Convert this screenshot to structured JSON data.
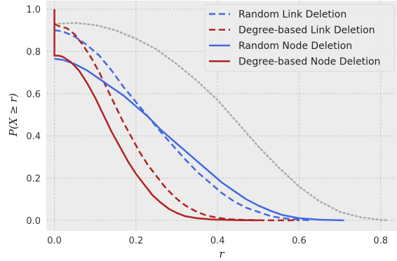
{
  "chart_data": {
    "type": "line",
    "title": "",
    "xlabel": "r",
    "ylabel": "P(X ≥ r)",
    "xlim": [
      -0.02,
      0.84
    ],
    "ylim": [
      -0.05,
      1.04
    ],
    "xticks": [
      0.0,
      0.2,
      0.4,
      0.6,
      0.8
    ],
    "xtick_labels": [
      "0.0",
      "0.2",
      "0.4",
      "0.6",
      "0.8"
    ],
    "yticks": [
      0.0,
      0.2,
      0.4,
      0.6,
      0.8,
      1.0
    ],
    "ytick_labels": [
      "0.0",
      "0.2",
      "0.4",
      "0.6",
      "0.8",
      "1.0"
    ],
    "grid": true,
    "legend_position": "top-right",
    "colors": {
      "blue": "#4169e1",
      "red": "#b22222",
      "gray": "#aaaaaa",
      "background": "#ececec",
      "grid": "#c8c8c8"
    },
    "series": [
      {
        "name": "Random Link Deletion",
        "color": "#4169e1",
        "dash": "dashed",
        "points": [
          [
            0.0,
            0.9
          ],
          [
            0.02,
            0.895
          ],
          [
            0.05,
            0.87
          ],
          [
            0.08,
            0.83
          ],
          [
            0.11,
            0.78
          ],
          [
            0.14,
            0.71
          ],
          [
            0.17,
            0.63
          ],
          [
            0.2,
            0.56
          ],
          [
            0.23,
            0.49
          ],
          [
            0.26,
            0.42
          ],
          [
            0.29,
            0.355
          ],
          [
            0.32,
            0.29
          ],
          [
            0.35,
            0.23
          ],
          [
            0.38,
            0.18
          ],
          [
            0.41,
            0.13
          ],
          [
            0.44,
            0.09
          ],
          [
            0.47,
            0.06
          ],
          [
            0.5,
            0.04
          ],
          [
            0.53,
            0.02
          ],
          [
            0.56,
            0.01
          ],
          [
            0.6,
            0.003
          ],
          [
            0.63,
            0.0
          ]
        ]
      },
      {
        "name": "Degree-based Link Deletion",
        "color": "#b22222",
        "dash": "dashed",
        "points": [
          [
            0.0,
            0.93
          ],
          [
            0.01,
            0.92
          ],
          [
            0.03,
            0.91
          ],
          [
            0.05,
            0.88
          ],
          [
            0.07,
            0.83
          ],
          [
            0.09,
            0.77
          ],
          [
            0.11,
            0.7
          ],
          [
            0.13,
            0.62
          ],
          [
            0.15,
            0.54
          ],
          [
            0.17,
            0.46
          ],
          [
            0.19,
            0.39
          ],
          [
            0.21,
            0.32
          ],
          [
            0.23,
            0.26
          ],
          [
            0.25,
            0.21
          ],
          [
            0.27,
            0.16
          ],
          [
            0.29,
            0.12
          ],
          [
            0.31,
            0.085
          ],
          [
            0.33,
            0.06
          ],
          [
            0.35,
            0.04
          ],
          [
            0.37,
            0.025
          ],
          [
            0.4,
            0.012
          ],
          [
            0.43,
            0.005
          ],
          [
            0.47,
            0.002
          ],
          [
            0.52,
            0.0
          ],
          [
            0.6,
            0.0
          ]
        ]
      },
      {
        "name": "Random Node Deletion",
        "color": "#4169e1",
        "dash": "solid",
        "points": [
          [
            0.0,
            0.765
          ],
          [
            0.02,
            0.76
          ],
          [
            0.05,
            0.74
          ],
          [
            0.08,
            0.71
          ],
          [
            0.11,
            0.67
          ],
          [
            0.14,
            0.63
          ],
          [
            0.17,
            0.59
          ],
          [
            0.2,
            0.54
          ],
          [
            0.23,
            0.49
          ],
          [
            0.26,
            0.43
          ],
          [
            0.29,
            0.38
          ],
          [
            0.32,
            0.33
          ],
          [
            0.35,
            0.28
          ],
          [
            0.38,
            0.23
          ],
          [
            0.41,
            0.18
          ],
          [
            0.44,
            0.14
          ],
          [
            0.47,
            0.1
          ],
          [
            0.5,
            0.07
          ],
          [
            0.53,
            0.045
          ],
          [
            0.56,
            0.025
          ],
          [
            0.6,
            0.01
          ],
          [
            0.65,
            0.003
          ],
          [
            0.71,
            0.0
          ]
        ]
      },
      {
        "name": "Degree-based Node Deletion",
        "color": "#b22222",
        "dash": "solid",
        "points": [
          [
            0.0,
            1.0
          ],
          [
            0.0,
            0.78
          ],
          [
            0.01,
            0.78
          ],
          [
            0.02,
            0.775
          ],
          [
            0.04,
            0.75
          ],
          [
            0.06,
            0.71
          ],
          [
            0.08,
            0.65
          ],
          [
            0.1,
            0.58
          ],
          [
            0.12,
            0.5
          ],
          [
            0.14,
            0.42
          ],
          [
            0.16,
            0.35
          ],
          [
            0.18,
            0.28
          ],
          [
            0.2,
            0.22
          ],
          [
            0.22,
            0.17
          ],
          [
            0.24,
            0.12
          ],
          [
            0.26,
            0.085
          ],
          [
            0.28,
            0.055
          ],
          [
            0.3,
            0.035
          ],
          [
            0.32,
            0.02
          ],
          [
            0.35,
            0.01
          ],
          [
            0.39,
            0.004
          ],
          [
            0.45,
            0.001
          ],
          [
            0.5,
            0.0
          ]
        ]
      },
      {
        "color": "#aaaaaa",
        "dash": "dotted",
        "points": [
          [
            0.0,
            0.93
          ],
          [
            0.05,
            0.935
          ],
          [
            0.1,
            0.925
          ],
          [
            0.15,
            0.9
          ],
          [
            0.2,
            0.86
          ],
          [
            0.25,
            0.81
          ],
          [
            0.3,
            0.74
          ],
          [
            0.35,
            0.66
          ],
          [
            0.4,
            0.57
          ],
          [
            0.45,
            0.46
          ],
          [
            0.5,
            0.35
          ],
          [
            0.55,
            0.25
          ],
          [
            0.6,
            0.16
          ],
          [
            0.65,
            0.09
          ],
          [
            0.7,
            0.04
          ],
          [
            0.75,
            0.015
          ],
          [
            0.8,
            0.002
          ],
          [
            0.82,
            0.0
          ]
        ]
      }
    ]
  }
}
